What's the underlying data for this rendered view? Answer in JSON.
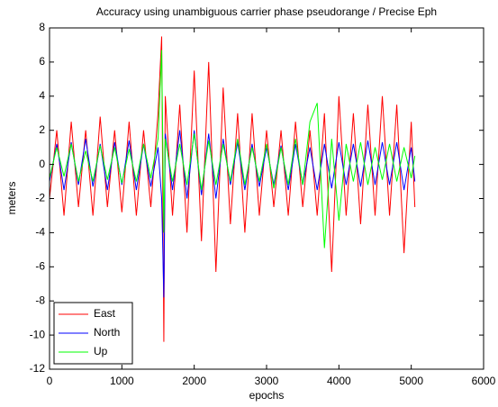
{
  "chart_data": {
    "type": "line",
    "title": "Accuracy using unambiguous carrier phase pseudorange / Precise Eph",
    "xlabel": "epochs",
    "ylabel": "meters",
    "x": [
      0,
      100,
      200,
      300,
      400,
      500,
      600,
      700,
      800,
      900,
      1000,
      1100,
      1200,
      1300,
      1400,
      1500,
      1550,
      1580,
      1600,
      1700,
      1800,
      1900,
      2000,
      2100,
      2200,
      2300,
      2400,
      2500,
      2600,
      2700,
      2800,
      2900,
      3000,
      3100,
      3200,
      3300,
      3400,
      3500,
      3600,
      3700,
      3800,
      3900,
      4000,
      4100,
      4200,
      4300,
      4400,
      4500,
      4600,
      4700,
      4800,
      4900,
      5000,
      5050
    ],
    "series": [
      {
        "name": "East",
        "color": "#ff0000",
        "values": [
          -2,
          2,
          -3,
          2.5,
          -2.5,
          2,
          -3,
          2.8,
          -2.5,
          2,
          -2.8,
          2.5,
          -3,
          2,
          -2.5,
          3,
          7.5,
          -10.4,
          4,
          -3,
          3.5,
          -4,
          5.5,
          -4.5,
          6,
          -6.3,
          4.5,
          -3.5,
          3,
          -4,
          3,
          -3,
          2,
          -2.5,
          2,
          -3,
          2.5,
          -2.5,
          2,
          -3,
          3,
          -6.3,
          4,
          -3,
          3,
          -3.5,
          3.5,
          -3,
          4,
          -3,
          3.5,
          -5.2,
          2.5,
          -2.5
        ]
      },
      {
        "name": "North",
        "color": "#0000ff",
        "values": [
          -1,
          1.2,
          -1.5,
          1.3,
          -1.2,
          1.5,
          -1.3,
          1.2,
          -1.5,
          1.3,
          -1.2,
          1.4,
          -1.5,
          1.2,
          -1.3,
          1,
          -2,
          -7.8,
          1.8,
          -1.5,
          2,
          -2,
          2,
          -1.8,
          1.8,
          -2,
          1.5,
          -1.2,
          1.3,
          -1.5,
          1.2,
          -1.3,
          1,
          -1.2,
          1.1,
          -1.5,
          1.2,
          -1.2,
          1,
          -1.5,
          1.2,
          -1.4,
          1.3,
          -1.2,
          1.2,
          -1.3,
          1.4,
          -1.2,
          1.3,
          -1.2,
          1.3,
          -1.5,
          1,
          -1
        ]
      },
      {
        "name": "Up",
        "color": "#00ff00",
        "values": [
          -0.8,
          1,
          -0.7,
          1.2,
          -1,
          0.8,
          -1,
          1.1,
          -0.9,
          1,
          -1.1,
          0.9,
          -1,
          1.2,
          -0.8,
          1.5,
          6.7,
          -4,
          1.5,
          -1,
          1.2,
          -1.2,
          1.8,
          -1.5,
          1.4,
          -1.2,
          1.2,
          -1,
          1.5,
          -1.2,
          1,
          -1,
          1.2,
          -1.4,
          1,
          -1.2,
          1.5,
          -1.2,
          2.5,
          3.6,
          -4.9,
          1.5,
          -3.3,
          1.2,
          -1,
          1.3,
          -1.2,
          1,
          -0.9,
          1.2,
          -1,
          1,
          -0.8,
          0.5
        ]
      }
    ],
    "xlim": [
      0,
      6000
    ],
    "ylim": [
      -12,
      8
    ],
    "xticks": [
      0,
      1000,
      2000,
      3000,
      4000,
      5000,
      6000
    ],
    "yticks": [
      -12,
      -10,
      -8,
      -6,
      -4,
      -2,
      0,
      2,
      4,
      6,
      8
    ],
    "legend": "lower left"
  }
}
